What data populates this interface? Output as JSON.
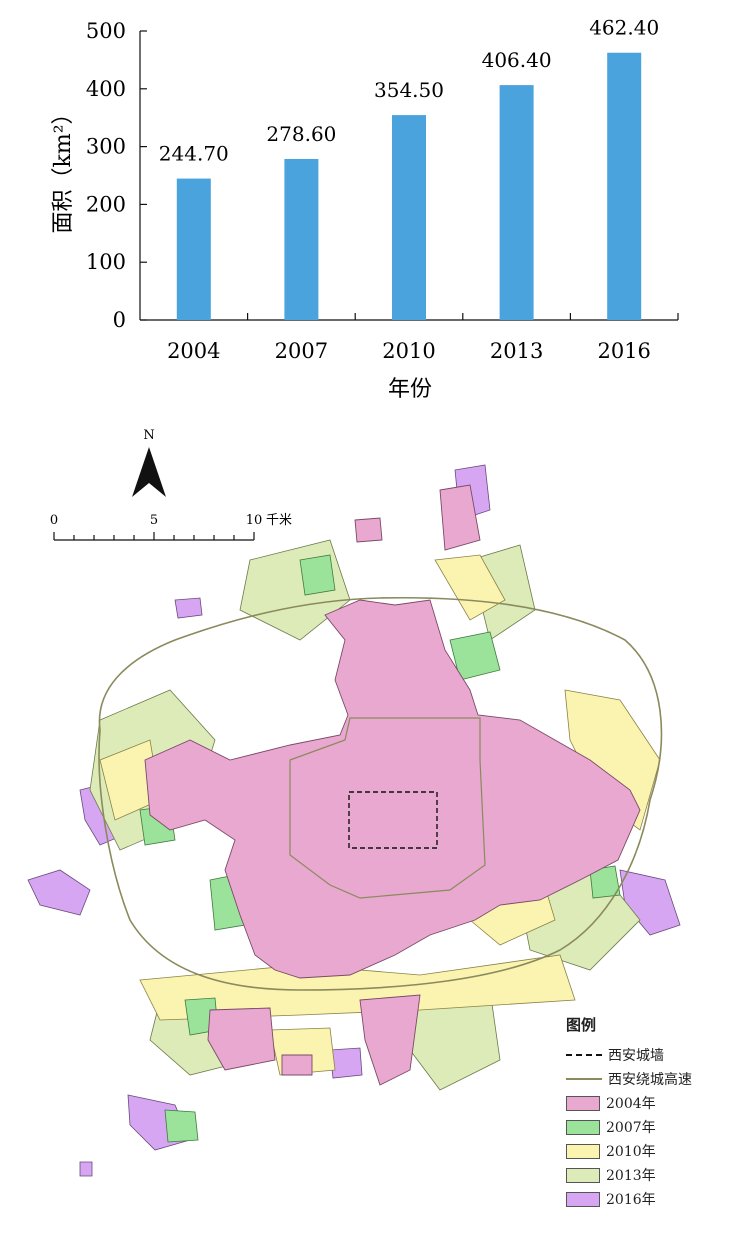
{
  "chart_data": {
    "type": "bar",
    "categories": [
      "2004",
      "2007",
      "2010",
      "2013",
      "2016"
    ],
    "values": [
      244.7,
      278.6,
      354.5,
      406.4,
      462.4
    ],
    "value_labels": [
      "244.70",
      "278.60",
      "354.50",
      "406.40",
      "462.40"
    ],
    "xlabel": "年份",
    "ylabel": "面积（km²）",
    "ylim": [
      0,
      500
    ],
    "yticks": [
      "0",
      "100",
      "200",
      "300",
      "400",
      "500"
    ],
    "bar_color": "#4aa3dc",
    "grid": false
  },
  "map": {
    "north_label": "N",
    "scale_labels": [
      "0",
      "5",
      "10"
    ],
    "scale_unit": "千米",
    "legend": {
      "title": "图例",
      "items": [
        {
          "label": "西安城墙",
          "kind": "dashed-line",
          "color": "#111111"
        },
        {
          "label": "西安绕城高速",
          "kind": "line",
          "color": "#8a8a5c"
        },
        {
          "label": "2004年",
          "kind": "fill",
          "color": "#e9a8cf"
        },
        {
          "label": "2007年",
          "kind": "fill",
          "color": "#9be29b"
        },
        {
          "label": "2010年",
          "kind": "fill",
          "color": "#fbf3b0"
        },
        {
          "label": "2013年",
          "kind": "fill",
          "color": "#dcebb8"
        },
        {
          "label": "2016年",
          "kind": "fill",
          "color": "#d6a6f2"
        }
      ]
    }
  }
}
